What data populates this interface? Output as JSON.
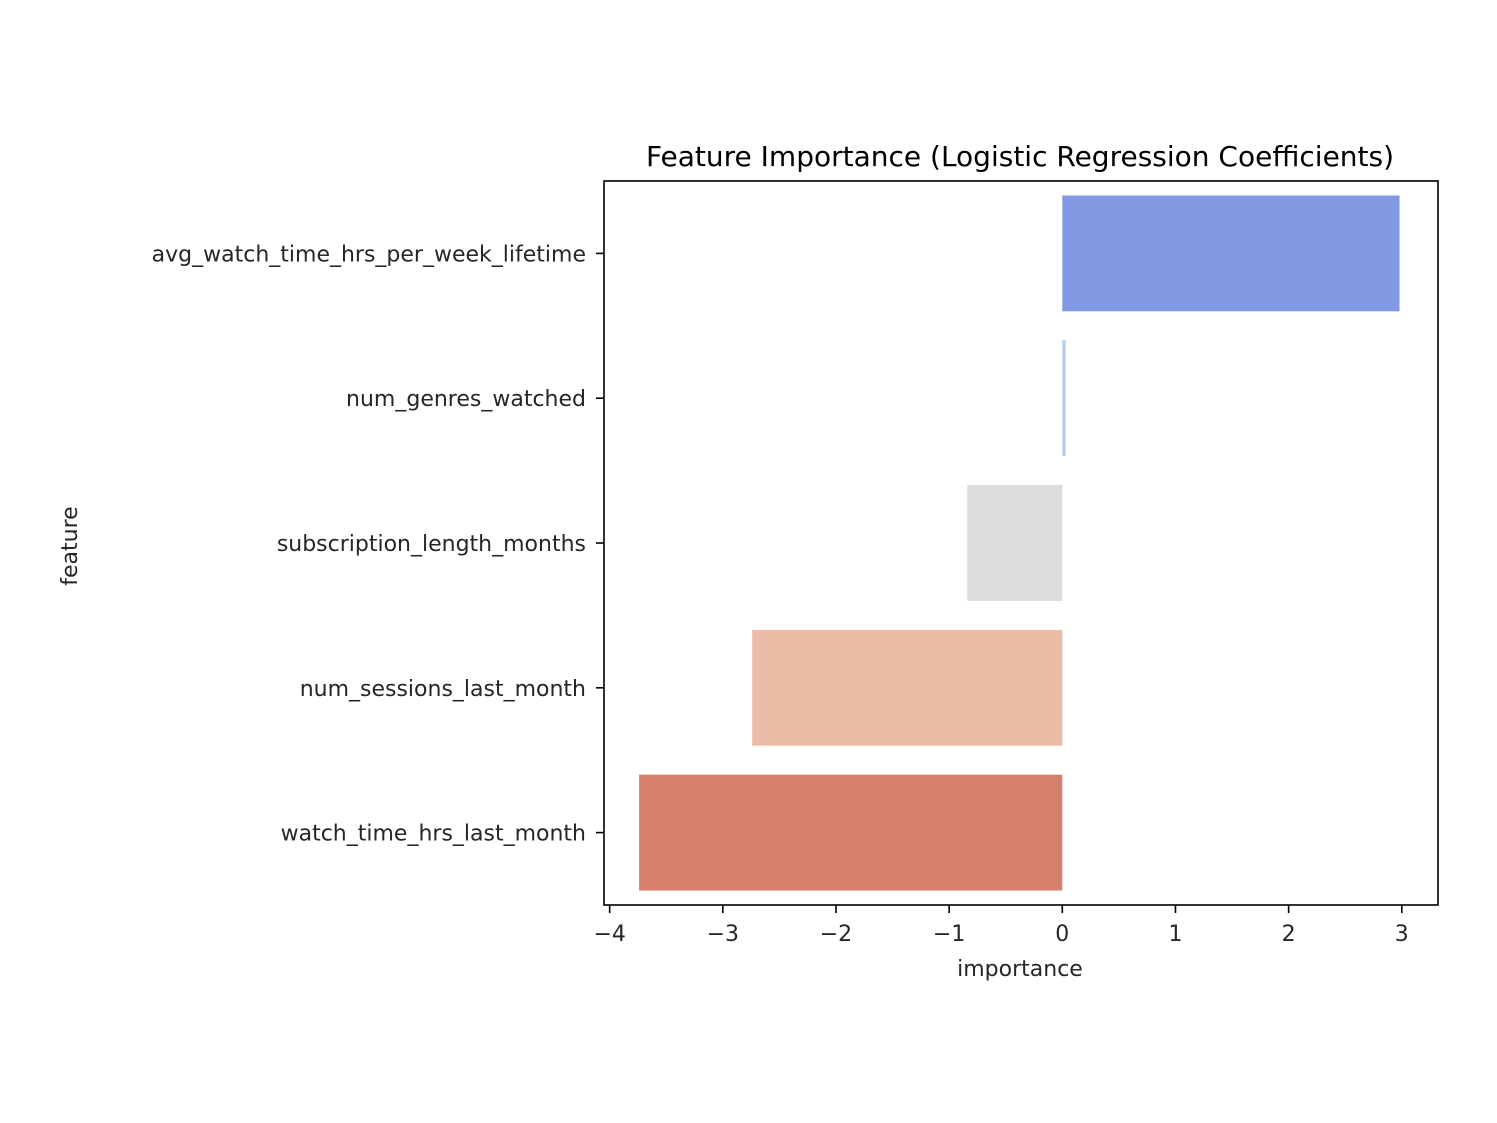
{
  "chart_data": {
    "type": "bar",
    "orientation": "horizontal",
    "title": "Feature Importance (Logistic Regression Coefficients)",
    "xlabel": "importance",
    "ylabel": "feature",
    "categories": [
      "avg_watch_time_hrs_per_week_lifetime",
      "num_genres_watched",
      "subscription_length_months",
      "num_sessions_last_month",
      "watch_time_hrs_last_month"
    ],
    "values": [
      2.98,
      0.03,
      -0.84,
      -2.74,
      -3.74
    ],
    "colors": [
      "#8199e3",
      "#b7cff4",
      "#dcdcdc",
      "#ebbca6",
      "#d67f6d"
    ],
    "xlim": [
      -4.05,
      3.32
    ],
    "xticks": [
      -4,
      -3,
      -2,
      -1,
      0,
      1,
      2,
      3
    ],
    "xtick_labels": [
      "−4",
      "−3",
      "−2",
      "−1",
      "0",
      "1",
      "2",
      "3"
    ],
    "grid": false,
    "legend": "none"
  }
}
